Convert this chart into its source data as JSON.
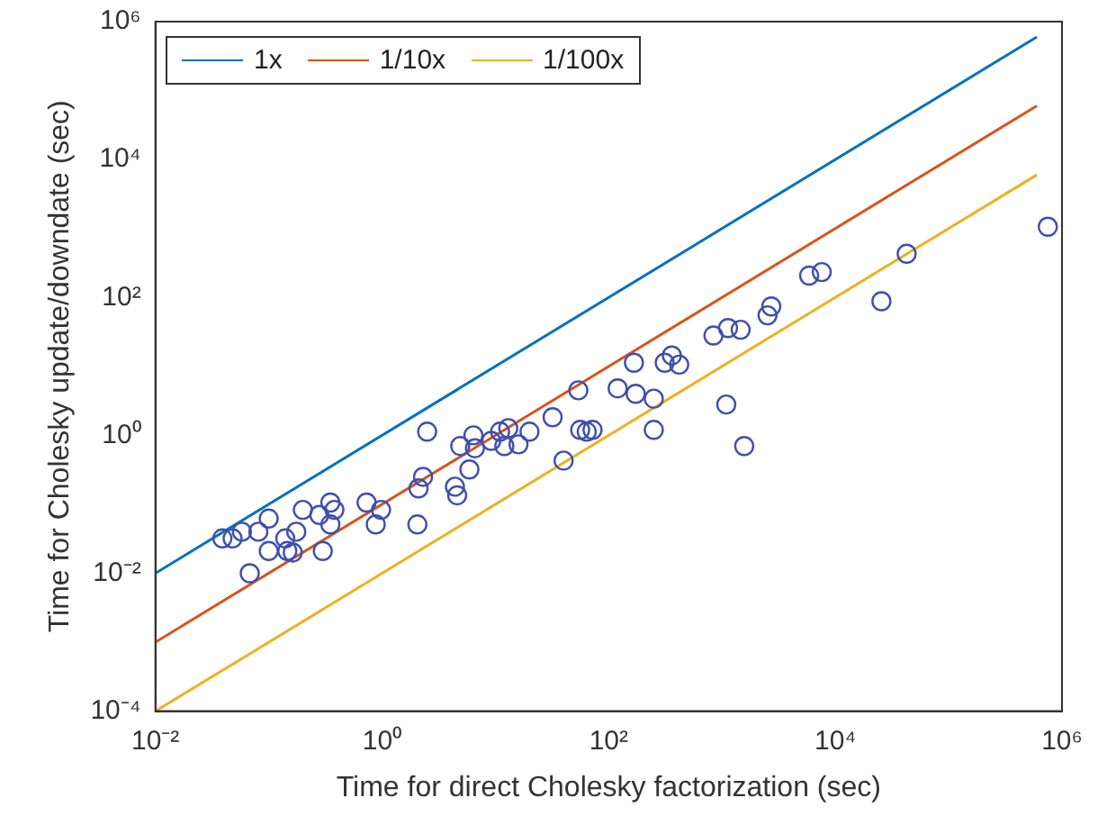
{
  "chart_data": {
    "type": "scatter",
    "xlabel": "Time for direct Cholesky factorization (sec)",
    "ylabel": "Time for Cholesky update/downdate (sec)",
    "log": "xy",
    "grid": false,
    "legend": "top left",
    "marker": "circle",
    "xlim": [
      0.01,
      1000000
    ],
    "ylim": [
      0.0001,
      1000000
    ],
    "xticks": [
      {
        "value": 0.01,
        "label": "10⁻²"
      },
      {
        "value": 1,
        "label": "10⁰"
      },
      {
        "value": 100,
        "label": "10²"
      },
      {
        "value": 10000,
        "label": "10⁴"
      },
      {
        "value": 1000000,
        "label": "10⁶"
      }
    ],
    "yticks": [
      {
        "value": 0.0001,
        "label": "10⁻⁴"
      },
      {
        "value": 0.01,
        "label": "10⁻²"
      },
      {
        "value": 1,
        "label": "10⁰"
      },
      {
        "value": 100,
        "label": "10²"
      },
      {
        "value": 10000,
        "label": "10⁴"
      },
      {
        "value": 1000000,
        "label": "10⁶"
      }
    ],
    "series": [
      {
        "name": "1x",
        "type": "line",
        "color": "#0072bd",
        "marker": "none",
        "x": [
          0.01,
          600000
        ],
        "values": [
          0.01,
          600000
        ]
      },
      {
        "name": "1/10x",
        "type": "line",
        "color": "#d95319",
        "marker": "none",
        "x": [
          0.01,
          600000
        ],
        "values": [
          0.001,
          60000
        ]
      },
      {
        "name": "1/100x",
        "type": "line",
        "color": "#edb120",
        "marker": "none",
        "x": [
          0.01,
          600000
        ],
        "values": [
          0.0001,
          6000
        ]
      },
      {
        "color": "#3f4fae",
        "x": [
          0.039,
          0.048,
          0.058,
          0.081,
          0.1,
          0.068,
          0.1,
          0.14,
          0.175,
          0.146,
          0.163,
          0.2,
          0.28,
          0.35,
          0.38,
          0.35,
          0.3,
          0.73,
          0.98,
          0.88,
          2.05,
          2.1,
          2.3,
          2.5,
          4.4,
          4.6,
          4.9,
          5.9,
          6.4,
          6.6,
          9.2,
          11,
          12,
          13,
          16,
          20,
          32,
          40,
          54,
          56,
          64,
          72,
          120,
          167,
          173,
          250,
          250,
          312,
          361,
          419,
          840,
          1130,
          1460,
          1090,
          1570,
          2520,
          2720,
          5870,
          7590,
          25500,
          42600,
          750000
        ],
        "values": [
          0.032,
          0.032,
          0.04,
          0.04,
          0.062,
          0.01,
          0.021,
          0.032,
          0.04,
          0.021,
          0.02,
          0.083,
          0.07,
          0.106,
          0.083,
          0.051,
          0.021,
          0.106,
          0.083,
          0.051,
          0.051,
          0.17,
          0.25,
          1.13,
          0.18,
          0.135,
          0.7,
          0.32,
          1.0,
          0.65,
          0.83,
          1.13,
          0.7,
          1.27,
          0.74,
          1.13,
          1.83,
          0.43,
          4.5,
          1.2,
          1.13,
          1.2,
          4.8,
          11.3,
          4.0,
          3.4,
          1.2,
          11.3,
          14.4,
          10.6,
          28,
          36,
          34,
          2.8,
          0.7,
          55,
          74,
          207,
          233,
          88,
          430,
          1060
        ]
      }
    ]
  }
}
